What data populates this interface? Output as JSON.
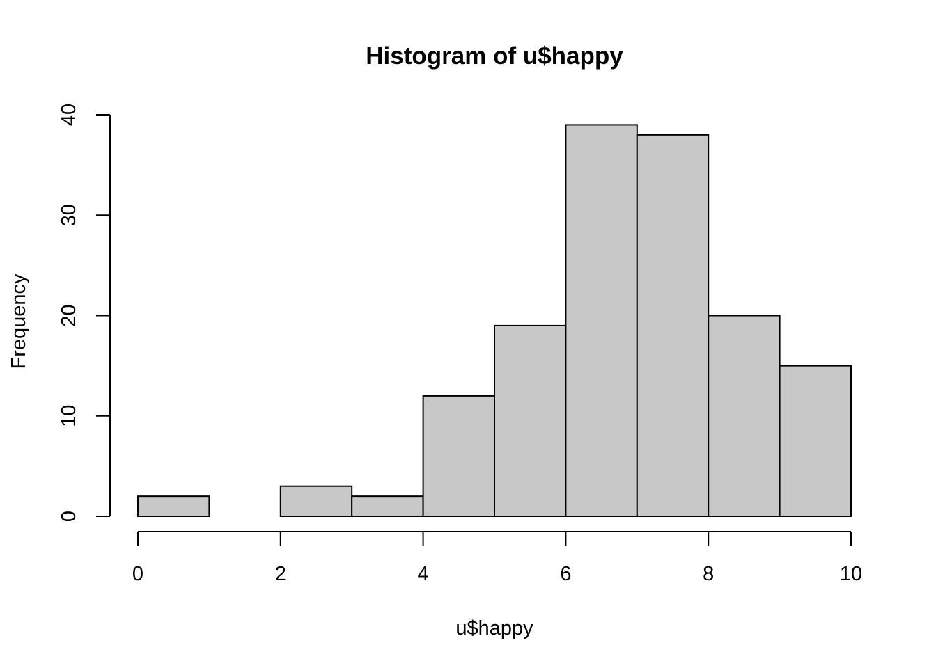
{
  "chart_data": {
    "type": "bar",
    "title": "Histogram of u$happy",
    "xlabel": "u$happy",
    "ylabel": "Frequency",
    "bins": [
      {
        "x0": 0,
        "x1": 1,
        "count": 2
      },
      {
        "x0": 1,
        "x1": 2,
        "count": 0
      },
      {
        "x0": 2,
        "x1": 3,
        "count": 3
      },
      {
        "x0": 3,
        "x1": 4,
        "count": 2
      },
      {
        "x0": 4,
        "x1": 5,
        "count": 12
      },
      {
        "x0": 5,
        "x1": 6,
        "count": 19
      },
      {
        "x0": 6,
        "x1": 7,
        "count": 39
      },
      {
        "x0": 7,
        "x1": 8,
        "count": 38
      },
      {
        "x0": 8,
        "x1": 9,
        "count": 20
      },
      {
        "x0": 9,
        "x1": 10,
        "count": 15
      }
    ],
    "xlim": [
      0,
      10
    ],
    "ylim": [
      0,
      40
    ],
    "xticks": [
      "0",
      "2",
      "4",
      "6",
      "8",
      "10"
    ],
    "yticks": [
      "0",
      "10",
      "20",
      "30",
      "40"
    ],
    "bar_color": "#c8c8c8",
    "border_color": "#000000",
    "grid": false
  }
}
